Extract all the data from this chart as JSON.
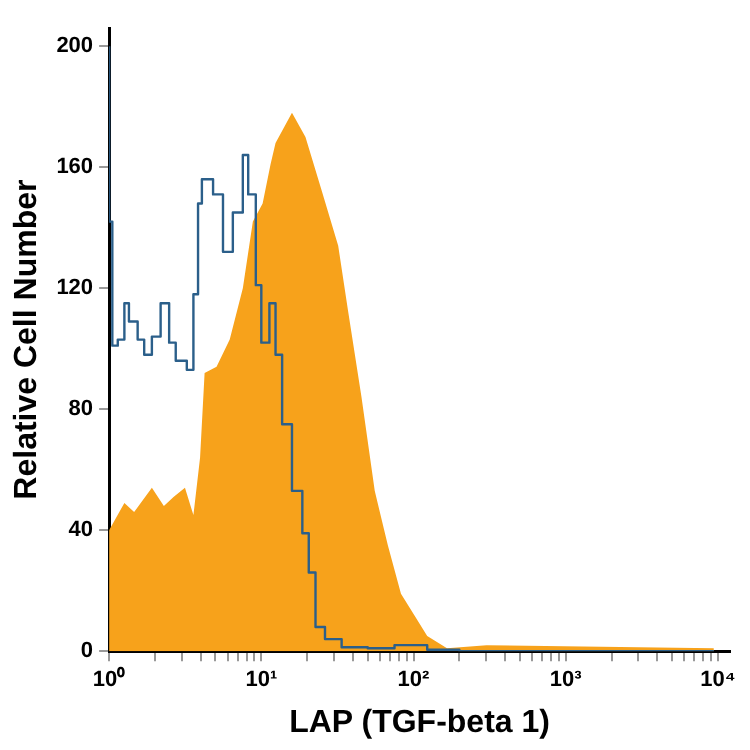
{
  "chart_data": {
    "type": "step",
    "xlabel": "LAP (TGF-beta 1)",
    "ylabel": "Relative Cell Number",
    "log": "x",
    "xlim": [
      1,
      12000
    ],
    "ylim": [
      0,
      206
    ],
    "xticks": [
      {
        "value": 1,
        "label": "10⁰"
      },
      {
        "value": 2,
        "label": null
      },
      {
        "value": 3,
        "label": null
      },
      {
        "value": 4,
        "label": null
      },
      {
        "value": 5,
        "label": null
      },
      {
        "value": 6,
        "label": null
      },
      {
        "value": 7,
        "label": null
      },
      {
        "value": 8,
        "label": null
      },
      {
        "value": 9,
        "label": null
      },
      {
        "value": 10,
        "label": "10¹"
      },
      {
        "value": 20,
        "label": null
      },
      {
        "value": 30,
        "label": null
      },
      {
        "value": 40,
        "label": null
      },
      {
        "value": 50,
        "label": null
      },
      {
        "value": 60,
        "label": null
      },
      {
        "value": 70,
        "label": null
      },
      {
        "value": 80,
        "label": null
      },
      {
        "value": 90,
        "label": null
      },
      {
        "value": 100,
        "label": "10²"
      },
      {
        "value": 200,
        "label": null
      },
      {
        "value": 300,
        "label": null
      },
      {
        "value": 400,
        "label": null
      },
      {
        "value": 500,
        "label": null
      },
      {
        "value": 600,
        "label": null
      },
      {
        "value": 700,
        "label": null
      },
      {
        "value": 800,
        "label": null
      },
      {
        "value": 900,
        "label": null
      },
      {
        "value": 1000,
        "label": "10³"
      },
      {
        "value": 2000,
        "label": null
      },
      {
        "value": 3000,
        "label": null
      },
      {
        "value": 4000,
        "label": null
      },
      {
        "value": 5000,
        "label": null
      },
      {
        "value": 6000,
        "label": null
      },
      {
        "value": 7000,
        "label": null
      },
      {
        "value": 8000,
        "label": null
      },
      {
        "value": 9000,
        "label": null
      },
      {
        "value": 10000,
        "label": "10⁴"
      }
    ],
    "yticks": [
      0,
      40,
      80,
      120,
      160,
      200
    ],
    "series": [
      {
        "type": "area",
        "color": "#f7a21b",
        "x": [
          1,
          1.26,
          1.46,
          1.91,
          2.29,
          2.65,
          3.15,
          3.58,
          3.96,
          4.24,
          5.08,
          6.2,
          7.56,
          8.8,
          10.2,
          11.5,
          12.4,
          15.9,
          19.5,
          25,
          32,
          37,
          45.5,
          55.6,
          67.8,
          82.7,
          101,
          123,
          166,
          302,
          9400
        ],
        "values": [
          40,
          49,
          46,
          54,
          48,
          51,
          54,
          45,
          64,
          92,
          94,
          103,
          120,
          142,
          148,
          161,
          168,
          178,
          170,
          152,
          134,
          113,
          84,
          53,
          35,
          19,
          12,
          5,
          1,
          2,
          1
        ]
      },
      {
        "color": "#2b5f8a",
        "x": [
          1,
          1.05,
          1.14,
          1.26,
          1.35,
          1.54,
          1.7,
          1.91,
          2.18,
          2.48,
          2.74,
          3.24,
          3.58,
          3.84,
          4.07,
          4.82,
          5.6,
          6.5,
          7.56,
          8.2,
          9.2,
          10,
          11.3,
          12.4,
          13.7,
          15.9,
          18.6,
          20.5,
          22.7,
          26.2,
          33.7,
          50,
          75,
          123,
          200,
          9400
        ],
        "values": [
          200,
          142,
          101,
          103,
          115,
          109,
          103,
          98,
          104,
          115,
          102,
          96,
          93,
          118,
          148,
          156,
          151,
          132,
          145,
          164,
          151,
          121,
          102,
          115,
          98,
          75,
          53,
          39,
          26,
          8,
          4,
          1.3,
          1,
          2,
          0.5,
          0
        ]
      }
    ]
  }
}
